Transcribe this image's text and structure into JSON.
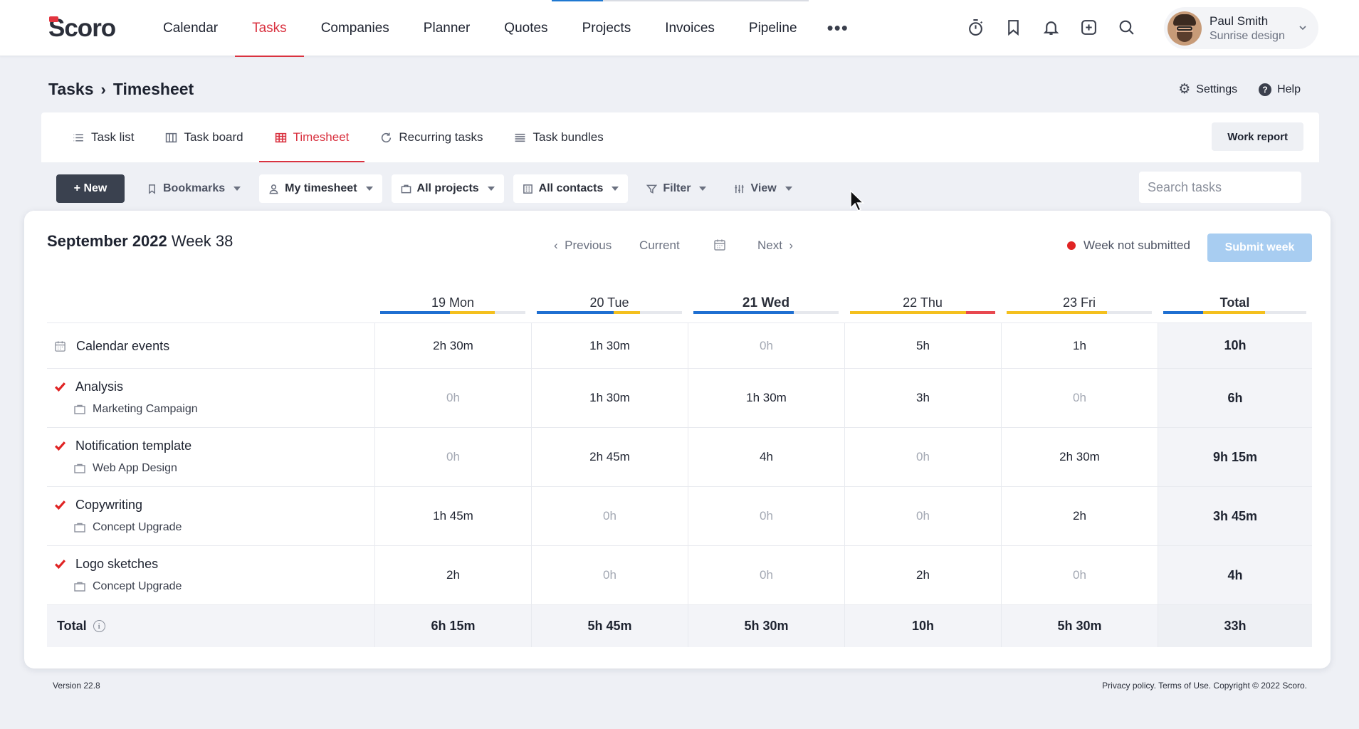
{
  "app": {
    "logo_text": "Scoro"
  },
  "nav": {
    "items": [
      {
        "label": "Calendar"
      },
      {
        "label": "Tasks",
        "active": true
      },
      {
        "label": "Companies"
      },
      {
        "label": "Planner"
      },
      {
        "label": "Quotes"
      },
      {
        "label": "Projects"
      },
      {
        "label": "Invoices"
      },
      {
        "label": "Pipeline"
      }
    ],
    "more_label": "•••"
  },
  "top_icons": [
    "stopwatch-icon",
    "bookmark-icon",
    "bell-icon",
    "add-square-icon",
    "search-icon"
  ],
  "user": {
    "name": "Paul Smith",
    "company": "Sunrise design"
  },
  "breadcrumb": {
    "parent": "Tasks",
    "separator": "›",
    "current": "Timesheet"
  },
  "header_actions": {
    "settings": "Settings",
    "help": "Help"
  },
  "tabs": [
    {
      "label": "Task list",
      "icon": "list-icon"
    },
    {
      "label": "Task board",
      "icon": "board-icon"
    },
    {
      "label": "Timesheet",
      "icon": "table-icon",
      "active": true
    },
    {
      "label": "Recurring tasks",
      "icon": "refresh-icon"
    },
    {
      "label": "Task bundles",
      "icon": "bundle-icon"
    }
  ],
  "work_report_label": "Work report",
  "toolbar": {
    "new_label": "+ New",
    "filters": [
      {
        "label": "Bookmarks",
        "icon": "bookmark-icon"
      },
      {
        "label": "My timesheet",
        "icon": "user-icon"
      },
      {
        "label": "All projects",
        "icon": "folder-icon"
      },
      {
        "label": "All contacts",
        "icon": "building-icon"
      },
      {
        "label": "Filter",
        "icon": "filter-icon"
      },
      {
        "label": "View",
        "icon": "columns-icon"
      }
    ],
    "search_placeholder": "Search tasks"
  },
  "timesheet": {
    "month": "September 2022",
    "week": "Week 38",
    "pager": {
      "previous": "Previous",
      "current": "Current",
      "next": "Next"
    },
    "status_label": "Week not submitted",
    "status_color": "#e02424",
    "submit_label": "Submit week",
    "days": [
      {
        "label": "19 Mon"
      },
      {
        "label": "20 Tue"
      },
      {
        "label": "21 Wed",
        "today": true
      },
      {
        "label": "22 Thu"
      },
      {
        "label": "23 Fri"
      }
    ],
    "total_label": "Total",
    "rows": [
      {
        "type": "calendar",
        "title": "Calendar events",
        "values": [
          "2h 30m",
          "1h 30m",
          "0h",
          "5h",
          "1h"
        ],
        "total": "10h"
      },
      {
        "type": "task",
        "title": "Analysis",
        "project": "Marketing Campaign",
        "values": [
          "0h",
          "1h 30m",
          "1h 30m",
          "3h",
          "0h"
        ],
        "total": "6h"
      },
      {
        "type": "task",
        "title": "Notification template",
        "project": "Web App Design",
        "values": [
          "0h",
          "2h 45m",
          "4h",
          "0h",
          "2h 30m"
        ],
        "total": "9h 15m"
      },
      {
        "type": "task",
        "title": "Copywriting",
        "project": "Concept Upgrade",
        "values": [
          "1h 45m",
          "0h",
          "0h",
          "0h",
          "2h"
        ],
        "total": "3h 45m"
      },
      {
        "type": "task",
        "title": "Logo sketches",
        "project": "Concept Upgrade",
        "values": [
          "2h",
          "0h",
          "0h",
          "2h",
          "0h"
        ],
        "total": "4h"
      }
    ],
    "totals": {
      "label": "Total",
      "values": [
        "6h 15m",
        "5h 45m",
        "5h 30m",
        "10h",
        "5h 30m"
      ],
      "grand_total": "33h"
    }
  },
  "colors": {
    "accent": "#d93240",
    "bar_blue": "#1f6fd1",
    "bar_yellow": "#f4c01e",
    "bar_red": "#e8484f",
    "bar_track": "#e6e8ed"
  },
  "footer": {
    "version": "Version 22.8",
    "legal": "Privacy policy. Terms of Use. Copyright © 2022 Scoro."
  }
}
